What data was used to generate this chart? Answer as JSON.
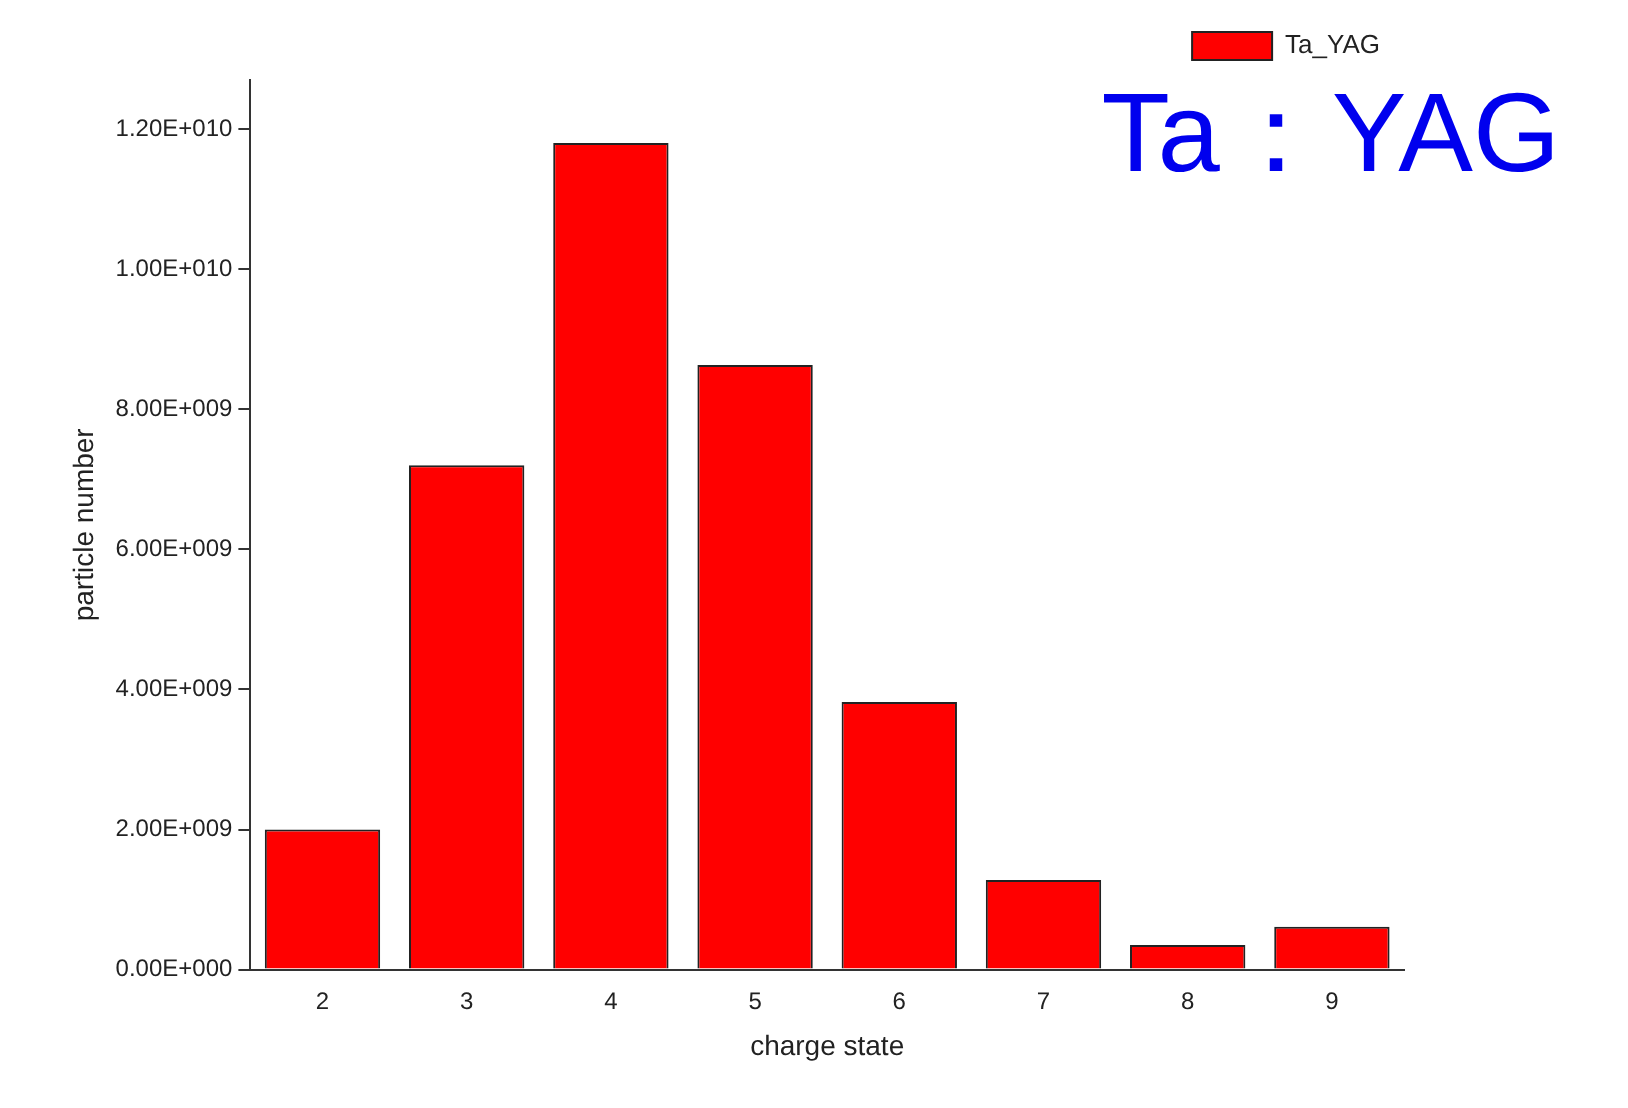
{
  "chart_data": {
    "type": "bar",
    "xlabel": "charge state",
    "ylabel": "particle number",
    "categories": [
      "2",
      "3",
      "4",
      "5",
      "6",
      "7",
      "8",
      "9"
    ],
    "series": [
      {
        "name": "Ta_YAG",
        "color": "#ff0000",
        "values": [
          2000000000.0,
          7200000000.0,
          11800000000.0,
          8630000000.0,
          3820000000.0,
          1280000000.0,
          350000000.0,
          610000000.0
        ]
      }
    ],
    "ylim": [
      0,
      12700000000.0
    ],
    "yticks": [
      {
        "value": 0,
        "label": "0.00E+000"
      },
      {
        "value": 2000000000.0,
        "label": "2.00E+009"
      },
      {
        "value": 4000000000.0,
        "label": "4.00E+009"
      },
      {
        "value": 6000000000.0,
        "label": "6.00E+009"
      },
      {
        "value": 8000000000.0,
        "label": "8.00E+009"
      },
      {
        "value": 10000000000.0,
        "label": "1.00E+010"
      },
      {
        "value": 12000000000.0,
        "label": "1.20E+010"
      }
    ],
    "annotations": [
      "Ta：YAG"
    ],
    "grid": false,
    "legend": "top right"
  }
}
